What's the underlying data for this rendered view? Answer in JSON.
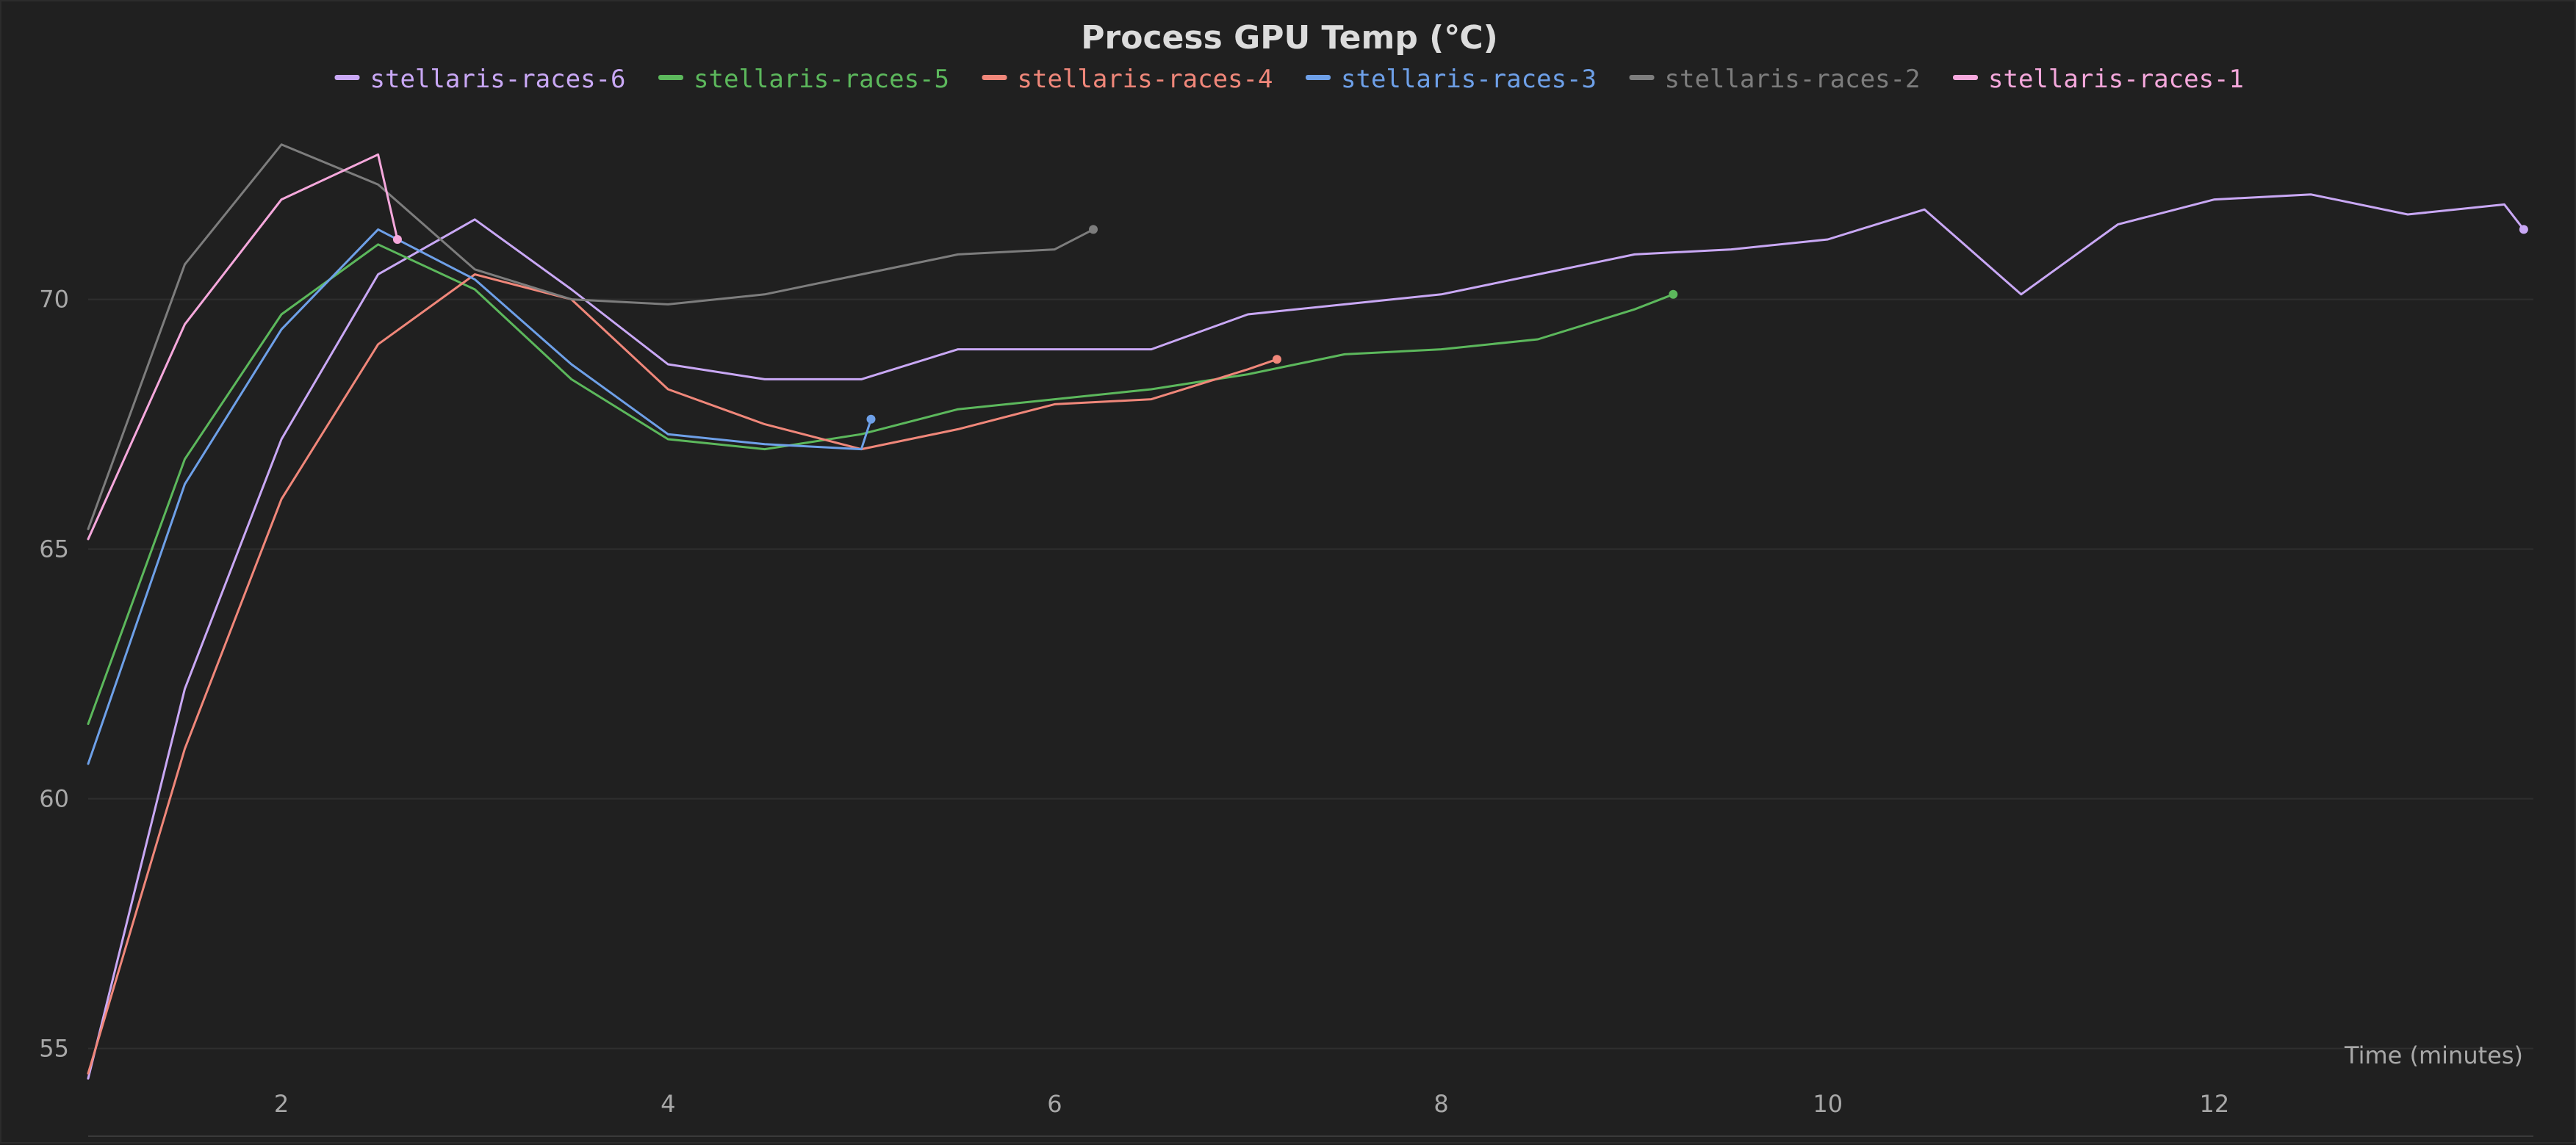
{
  "chart_data": {
    "type": "line",
    "title": "Process GPU Temp (℃)",
    "xlabel": "Time (minutes)",
    "ylabel": "",
    "xlim": [
      1,
      13.65
    ],
    "ylim": [
      54.2,
      74.2
    ],
    "xticks": [
      2,
      4,
      6,
      8,
      10,
      12
    ],
    "yticks": [
      55,
      60,
      65,
      70
    ],
    "grid": true,
    "legend_position": "top-center",
    "series": [
      {
        "name": "stellaris-races-6",
        "color": "#c9a8f5",
        "x": [
          1,
          1.5,
          2,
          2.5,
          3,
          3.5,
          4,
          4.5,
          5,
          5.5,
          6,
          6.5,
          7,
          7.5,
          8,
          8.5,
          9,
          9.5,
          10,
          10.5,
          11,
          11.5,
          12,
          12.5,
          13,
          13.5,
          13.6
        ],
        "y": [
          54.4,
          62.2,
          67.2,
          70.5,
          71.6,
          70.2,
          68.7,
          68.4,
          68.4,
          69.0,
          69.0,
          69.0,
          69.7,
          69.9,
          70.1,
          70.5,
          70.9,
          71.0,
          71.2,
          71.8,
          70.1,
          71.5,
          72.0,
          72.1,
          71.7,
          71.9,
          71.4
        ]
      },
      {
        "name": "stellaris-races-5",
        "color": "#5cb85c",
        "x": [
          1,
          1.5,
          2,
          2.5,
          3,
          3.5,
          4,
          4.5,
          5,
          5.5,
          6,
          6.5,
          7,
          7.5,
          8,
          8.5,
          9,
          9.2
        ],
        "y": [
          61.5,
          66.8,
          69.7,
          71.1,
          70.2,
          68.4,
          67.2,
          67.0,
          67.3,
          67.8,
          68.0,
          68.2,
          68.5,
          68.9,
          69.0,
          69.2,
          69.8,
          70.1
        ]
      },
      {
        "name": "stellaris-races-4",
        "color": "#f0877a",
        "x": [
          1,
          1.5,
          2,
          2.5,
          3,
          3.5,
          4,
          4.5,
          5,
          5.5,
          6,
          6.5,
          7,
          7.15
        ],
        "y": [
          54.5,
          61.0,
          66.0,
          69.1,
          70.5,
          70.0,
          68.2,
          67.5,
          67.0,
          67.4,
          67.9,
          68.0,
          68.6,
          68.8
        ]
      },
      {
        "name": "stellaris-races-3",
        "color": "#6ea0e8",
        "x": [
          1,
          1.5,
          2,
          2.5,
          3,
          3.5,
          4,
          4.5,
          5,
          5.05
        ],
        "y": [
          60.7,
          66.3,
          69.4,
          71.4,
          70.4,
          68.7,
          67.3,
          67.1,
          67.0,
          67.6
        ]
      },
      {
        "name": "stellaris-races-2",
        "color": "#7d7d7d",
        "x": [
          1,
          1.5,
          2,
          2.5,
          3,
          3.5,
          4,
          4.5,
          5,
          5.5,
          6,
          6.2
        ],
        "y": [
          65.4,
          70.7,
          73.1,
          72.3,
          70.6,
          70.0,
          69.9,
          70.1,
          70.5,
          70.9,
          71.0,
          71.4
        ]
      },
      {
        "name": "stellaris-races-1",
        "color": "#f5a8dc",
        "x": [
          1,
          1.5,
          2,
          2.5,
          2.6
        ],
        "y": [
          65.2,
          69.5,
          72.0,
          72.9,
          71.2
        ]
      }
    ]
  }
}
